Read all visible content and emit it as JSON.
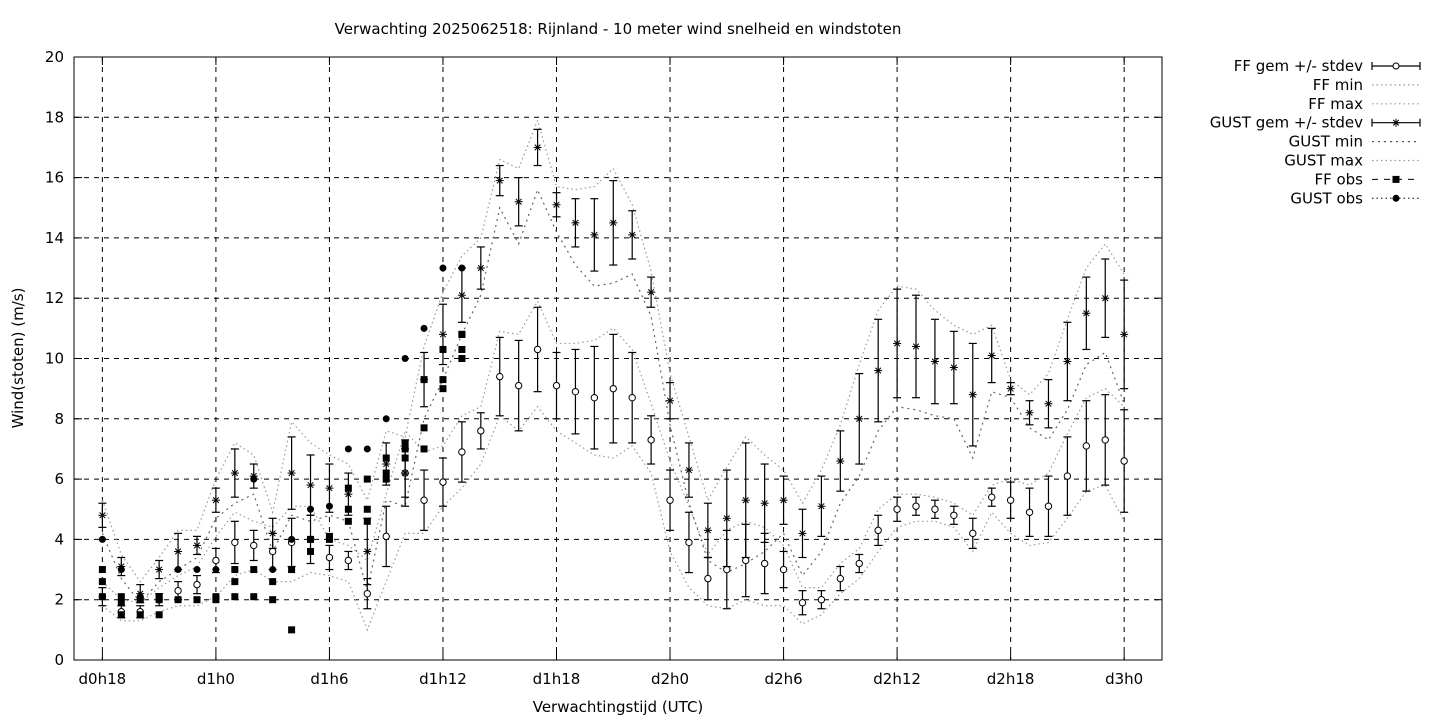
{
  "chart_data": {
    "type": "line",
    "title": "Verwachting 2025062518: Rijnland - 10 meter wind snelheid en windstoten",
    "xlabel": "Verwachtingstijd (UTC)",
    "ylabel": "Wind(stoten) (m/s)",
    "ylim": [
      0,
      20
    ],
    "xlim": [
      -1.5,
      56
    ],
    "yticks": [
      "0",
      "2",
      "4",
      "6",
      "8",
      "10",
      "12",
      "14",
      "16",
      "18",
      "20"
    ],
    "xticks": [
      {
        "x": 0,
        "label": "d0h18"
      },
      {
        "x": 6,
        "label": "d1h0"
      },
      {
        "x": 12,
        "label": "d1h6"
      },
      {
        "x": 18,
        "label": "d1h12"
      },
      {
        "x": 24,
        "label": "d1h18"
      },
      {
        "x": 30,
        "label": "d2h0"
      },
      {
        "x": 36,
        "label": "d2h6"
      },
      {
        "x": 42,
        "label": "d2h12"
      },
      {
        "x": 48,
        "label": "d2h18"
      },
      {
        "x": 54,
        "label": "d3h0"
      }
    ],
    "grid": true,
    "legend_position": "outside-right",
    "legend": [
      {
        "label": "FF gem +/- stdev",
        "style": "errorbar-circle"
      },
      {
        "label": "FF min",
        "style": "dotted-light"
      },
      {
        "label": "FF max",
        "style": "dotted-light"
      },
      {
        "label": "GUST gem +/- stdev",
        "style": "errorbar-star"
      },
      {
        "label": "GUST min",
        "style": "dotted"
      },
      {
        "label": "GUST max",
        "style": "dotted-light"
      },
      {
        "label": "FF obs",
        "style": "square"
      },
      {
        "label": "GUST obs",
        "style": "dot"
      }
    ],
    "series": [
      {
        "name": "FF gem +/- stdev",
        "x": [
          0,
          1,
          2,
          3,
          4,
          5,
          6,
          7,
          8,
          9,
          10,
          11,
          12,
          13,
          14,
          15,
          16,
          17,
          18,
          19,
          20,
          21,
          22,
          23,
          24,
          25,
          26,
          27,
          28,
          29,
          30,
          31,
          32,
          33,
          34,
          35,
          36,
          37,
          38,
          39,
          40,
          41,
          42,
          43,
          44,
          45,
          46,
          47,
          48,
          49,
          50,
          51,
          52,
          53,
          54
        ],
        "y": [
          2.1,
          1.6,
          1.6,
          2.0,
          2.3,
          2.5,
          3.3,
          3.9,
          3.8,
          3.6,
          3.9,
          4.0,
          3.4,
          3.3,
          2.2,
          4.1,
          6.2,
          5.3,
          5.9,
          6.9,
          7.6,
          9.4,
          9.1,
          10.3,
          9.1,
          8.9,
          8.7,
          9.0,
          8.7,
          7.3,
          5.3,
          3.9,
          2.7,
          3.0,
          3.3,
          3.2,
          3.0,
          1.9,
          2.0,
          2.7,
          3.2,
          4.3,
          5.0,
          5.1,
          5.0,
          4.8,
          4.2,
          5.4,
          5.3,
          4.9,
          5.1,
          6.1,
          7.1,
          7.3,
          6.6
        ],
        "err": [
          0.3,
          0.2,
          0.2,
          0.2,
          0.3,
          0.3,
          0.4,
          0.7,
          0.5,
          0.6,
          0.8,
          0.8,
          0.4,
          0.3,
          0.5,
          1.0,
          1.1,
          1.0,
          0.8,
          1.0,
          0.6,
          1.3,
          1.5,
          1.4,
          1.1,
          1.4,
          1.7,
          1.8,
          1.5,
          0.8,
          1.0,
          1.0,
          0.7,
          1.3,
          1.2,
          1.0,
          0.6,
          0.4,
          0.3,
          0.4,
          0.3,
          0.5,
          0.4,
          0.3,
          0.3,
          0.3,
          0.5,
          0.3,
          0.6,
          0.8,
          1.0,
          1.3,
          1.5,
          1.5,
          1.7
        ]
      },
      {
        "name": "GUST gem +/- stdev",
        "x": [
          0,
          1,
          2,
          3,
          4,
          5,
          6,
          7,
          8,
          9,
          10,
          11,
          12,
          13,
          14,
          15,
          16,
          17,
          18,
          19,
          20,
          21,
          22,
          23,
          24,
          25,
          26,
          27,
          28,
          29,
          30,
          31,
          32,
          33,
          34,
          35,
          36,
          37,
          38,
          39,
          40,
          41,
          42,
          43,
          44,
          45,
          46,
          47,
          48,
          49,
          50,
          51,
          52,
          53,
          54
        ],
        "y": [
          4.8,
          3.1,
          2.2,
          3.0,
          3.6,
          3.8,
          5.3,
          6.2,
          6.1,
          4.2,
          6.2,
          5.8,
          5.7,
          5.5,
          3.6,
          6.5,
          6.2,
          9.3,
          10.8,
          12.1,
          13.0,
          15.9,
          15.2,
          17.0,
          15.1,
          14.5,
          14.1,
          14.5,
          14.1,
          12.2,
          8.6,
          6.3,
          4.3,
          4.7,
          5.3,
          5.2,
          5.3,
          4.2,
          5.1,
          6.6,
          8.0,
          9.6,
          10.5,
          10.4,
          9.9,
          9.7,
          8.8,
          10.1,
          9.0,
          8.2,
          8.5,
          9.9,
          11.5,
          12.0,
          10.8
        ],
        "err": [
          0.4,
          0.3,
          0.3,
          0.3,
          0.6,
          0.3,
          0.4,
          0.8,
          0.4,
          0.5,
          1.2,
          1.0,
          0.8,
          0.7,
          1.1,
          0.7,
          0.8,
          0.9,
          1.0,
          0.9,
          0.7,
          0.5,
          0.8,
          0.6,
          0.4,
          0.8,
          1.2,
          1.4,
          0.8,
          0.5,
          0.6,
          0.9,
          0.9,
          1.6,
          1.9,
          1.3,
          0.8,
          0.8,
          1.0,
          1.0,
          1.5,
          1.7,
          1.8,
          1.7,
          1.4,
          1.2,
          1.7,
          0.9,
          0.2,
          0.4,
          0.8,
          1.3,
          1.2,
          1.3,
          1.8
        ]
      },
      {
        "name": "FF min",
        "x": [
          0,
          1,
          2,
          3,
          4,
          5,
          6,
          7,
          8,
          9,
          10,
          11,
          12,
          13,
          14,
          15,
          16,
          17,
          18,
          19,
          20,
          21,
          22,
          23,
          24,
          25,
          26,
          27,
          28,
          29,
          30,
          31,
          32,
          33,
          34,
          35,
          36,
          37,
          38,
          39,
          40,
          41,
          42,
          43,
          44,
          45,
          46,
          47,
          48,
          49,
          50,
          51,
          52,
          53,
          54
        ],
        "y": [
          1.8,
          1.3,
          1.3,
          1.6,
          1.8,
          1.8,
          2.1,
          2.8,
          3.0,
          2.6,
          2.6,
          2.9,
          2.8,
          2.6,
          1.0,
          2.6,
          4.2,
          4.2,
          5.1,
          5.7,
          6.5,
          8.1,
          7.6,
          8.4,
          7.6,
          7.2,
          6.8,
          6.7,
          7.1,
          6.2,
          3.6,
          2.4,
          1.8,
          1.7,
          2.0,
          1.8,
          1.8,
          1.2,
          1.5,
          2.2,
          2.7,
          3.6,
          4.4,
          4.6,
          4.6,
          4.4,
          3.6,
          4.9,
          4.2,
          3.8,
          3.9,
          4.7,
          5.6,
          5.8,
          4.6
        ]
      },
      {
        "name": "FF max",
        "x": [
          0,
          1,
          2,
          3,
          4,
          5,
          6,
          7,
          8,
          9,
          10,
          11,
          12,
          13,
          14,
          15,
          16,
          17,
          18,
          19,
          20,
          21,
          22,
          23,
          24,
          25,
          26,
          27,
          28,
          29,
          30,
          31,
          32,
          33,
          34,
          35,
          36,
          37,
          38,
          39,
          40,
          41,
          42,
          43,
          44,
          45,
          46,
          47,
          48,
          49,
          50,
          51,
          52,
          53,
          54
        ],
        "y": [
          2.6,
          2.0,
          1.9,
          2.4,
          2.8,
          3.1,
          4.1,
          4.9,
          4.6,
          4.4,
          5.1,
          5.1,
          4.0,
          3.8,
          3.3,
          5.5,
          7.6,
          6.9,
          7.1,
          8.1,
          8.4,
          10.9,
          10.8,
          11.9,
          10.5,
          10.5,
          10.6,
          11.0,
          10.3,
          8.5,
          6.6,
          5.1,
          3.5,
          4.3,
          4.6,
          4.4,
          3.8,
          2.4,
          2.4,
          3.2,
          3.7,
          5.0,
          5.5,
          5.5,
          5.4,
          5.2,
          4.8,
          5.8,
          6.0,
          5.8,
          6.2,
          7.5,
          8.7,
          9.0,
          8.4
        ]
      },
      {
        "name": "GUST min",
        "x": [
          0,
          1,
          2,
          3,
          4,
          5,
          6,
          7,
          8,
          9,
          10,
          11,
          12,
          13,
          14,
          15,
          16,
          17,
          18,
          19,
          20,
          21,
          22,
          23,
          24,
          25,
          26,
          27,
          28,
          29,
          30,
          31,
          32,
          33,
          34,
          35,
          36,
          37,
          38,
          39,
          40,
          41,
          42,
          43,
          44,
          45,
          46,
          47,
          48,
          49,
          50,
          51,
          52,
          53,
          54
        ],
        "y": [
          4.2,
          2.7,
          1.9,
          2.6,
          3.0,
          3.4,
          4.7,
          5.2,
          5.5,
          3.6,
          4.8,
          4.6,
          4.8,
          4.6,
          2.3,
          5.3,
          5.1,
          8.0,
          9.3,
          10.8,
          12.1,
          15.0,
          13.8,
          15.6,
          14.2,
          13.1,
          12.4,
          12.5,
          12.8,
          11.4,
          7.8,
          5.2,
          3.3,
          2.9,
          3.2,
          3.6,
          4.2,
          2.8,
          3.6,
          5.2,
          6.1,
          7.6,
          8.4,
          8.3,
          8.1,
          8.0,
          6.7,
          8.9,
          8.7,
          7.7,
          7.3,
          8.3,
          9.8,
          10.2,
          8.5
        ]
      },
      {
        "name": "GUST max",
        "x": [
          0,
          1,
          2,
          3,
          4,
          5,
          6,
          7,
          8,
          9,
          10,
          11,
          12,
          13,
          14,
          15,
          16,
          17,
          18,
          19,
          20,
          21,
          22,
          23,
          24,
          25,
          26,
          27,
          28,
          29,
          30,
          31,
          32,
          33,
          34,
          35,
          36,
          37,
          38,
          39,
          40,
          41,
          42,
          43,
          44,
          45,
          46,
          47,
          48,
          49,
          50,
          51,
          52,
          53,
          54
        ],
        "y": [
          5.3,
          3.5,
          2.6,
          3.4,
          4.3,
          4.3,
          6.0,
          7.2,
          6.8,
          4.9,
          7.9,
          7.2,
          6.8,
          6.5,
          5.3,
          7.6,
          7.4,
          10.4,
          12.2,
          13.4,
          14.0,
          16.6,
          16.3,
          17.9,
          15.7,
          15.6,
          15.7,
          16.3,
          15.1,
          12.9,
          9.5,
          7.4,
          5.3,
          6.4,
          7.4,
          6.8,
          6.3,
          5.2,
          6.3,
          7.8,
          9.8,
          11.6,
          12.4,
          12.3,
          11.6,
          11.1,
          10.8,
          11.1,
          9.3,
          8.8,
          9.5,
          11.3,
          13.0,
          13.8,
          12.8
        ]
      }
    ],
    "observations": {
      "FF obs": {
        "x": [
          0,
          0,
          0,
          1,
          1,
          1,
          2,
          2,
          3,
          3,
          3,
          4,
          5,
          6,
          6,
          7,
          7,
          7,
          8,
          8,
          9,
          9,
          10,
          10,
          11,
          11,
          12,
          12,
          13,
          13,
          13,
          14,
          14,
          14,
          15,
          15,
          15,
          16,
          16,
          16,
          17,
          17,
          17,
          18,
          18,
          18,
          19,
          19,
          19,
          19
        ],
        "y": [
          2.1,
          2.6,
          3.0,
          1.5,
          1.9,
          2.1,
          1.5,
          2.0,
          1.5,
          2.0,
          2.1,
          2.0,
          2.0,
          2.0,
          2.1,
          2.6,
          3.0,
          2.1,
          2.1,
          3.0,
          2.0,
          2.6,
          1.0,
          3.0,
          4.0,
          3.6,
          4.1,
          4.0,
          4.6,
          5.0,
          5.7,
          4.6,
          5.0,
          6.0,
          6.2,
          6.0,
          6.7,
          6.7,
          7.0,
          7.2,
          7.7,
          7.0,
          9.3,
          9.0,
          9.3,
          10.3,
          10.0,
          10.3,
          10.8,
          10.8
        ]
      },
      "GUST obs": {
        "x": [
          0,
          1,
          2,
          3,
          4,
          5,
          6,
          7,
          8,
          9,
          10,
          11,
          12,
          13,
          14,
          15,
          16,
          17,
          18,
          19
        ],
        "y": [
          4.0,
          3.0,
          2.1,
          2.1,
          3.0,
          3.0,
          3.0,
          3.0,
          6.0,
          3.0,
          4.0,
          5.0,
          5.1,
          7.0,
          7.0,
          8.0,
          10.0,
          11.0,
          13.0,
          13.0
        ]
      }
    }
  }
}
